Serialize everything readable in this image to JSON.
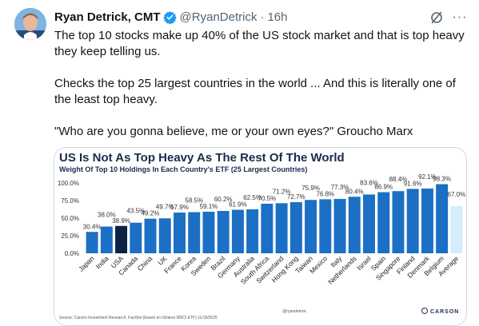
{
  "tweet": {
    "author_name": "Ryan Detrick, CMT",
    "handle": "@RyanDetrick",
    "separator": "·",
    "time": "16h",
    "paragraphs": [
      "The top 10 stocks make up 40% of the US stock market and that is top heavy they keep telling us.",
      "Checks the top 25 largest countries in the world ... And this is literally one of the least top heavy.",
      "\"Who are you gonna believe, me or your own eyes?\" Groucho Marx"
    ]
  },
  "icons": {
    "verified": "verified-badge-icon",
    "grok": "grok-icon",
    "more": "more-icon"
  },
  "colors": {
    "bar": "#1b6fc4",
    "highlight": "#0d2143",
    "average": "#d4ecfb",
    "verified": "#1d9bf0"
  },
  "chart_data": {
    "type": "bar",
    "title": "US Is Not As Top Heavy As The Rest Of The World",
    "subtitle": "Weight Of Top 10 Holdings In Each Country's ETF (25 Largest Countries)",
    "categories": [
      "Japan",
      "India",
      "USA",
      "Canada",
      "China",
      "UK",
      "France",
      "Korea",
      "Sweden",
      "Brazil",
      "Germany",
      "Australia",
      "South Africa",
      "Switzerland",
      "Hong Kong",
      "Taiwan",
      "Mexico",
      "Italy",
      "Netherlands",
      "Israel",
      "Spain",
      "Singapore",
      "Finland",
      "Denmark",
      "Belgium",
      "Average"
    ],
    "values": [
      30.4,
      38.0,
      38.9,
      43.5,
      49.2,
      49.7,
      57.9,
      58.5,
      59.1,
      60.2,
      61.9,
      62.5,
      70.5,
      71.2,
      72.7,
      75.9,
      76.8,
      77.3,
      80.4,
      83.6,
      86.9,
      88.4,
      91.6,
      92.1,
      98.3,
      67.0
    ],
    "value_labels": [
      "30.4%",
      "38.0%",
      "38.9%",
      "43.5%",
      "49.2%",
      "49.7%",
      "57.9%",
      "58.5%",
      "59.1%",
      "60.2%",
      "61.9%",
      "62.5%",
      "70.5%",
      "71.2%",
      "72.7%",
      "75.9%",
      "76.8%",
      "77.3%",
      "80.4%",
      "83.6%",
      "86.9%",
      "88.4%",
      "91.6%",
      "92.1%",
      "98.3%",
      "67.0%"
    ],
    "highlight_category": "USA",
    "average_category": "Average",
    "ylim": [
      0,
      100
    ],
    "yticks": [
      0,
      25,
      50,
      75,
      100
    ],
    "ytick_labels": [
      "0.0%",
      "25.0%",
      "50.0%",
      "75.0%",
      "100.0%"
    ],
    "grid": false,
    "legend": "none",
    "watermark": "@ryandetrick",
    "source": "Source: Carson Investment Research, FactSet (based on iShares MSCI ETF) 11/19/2025",
    "brand": "CARSON"
  }
}
